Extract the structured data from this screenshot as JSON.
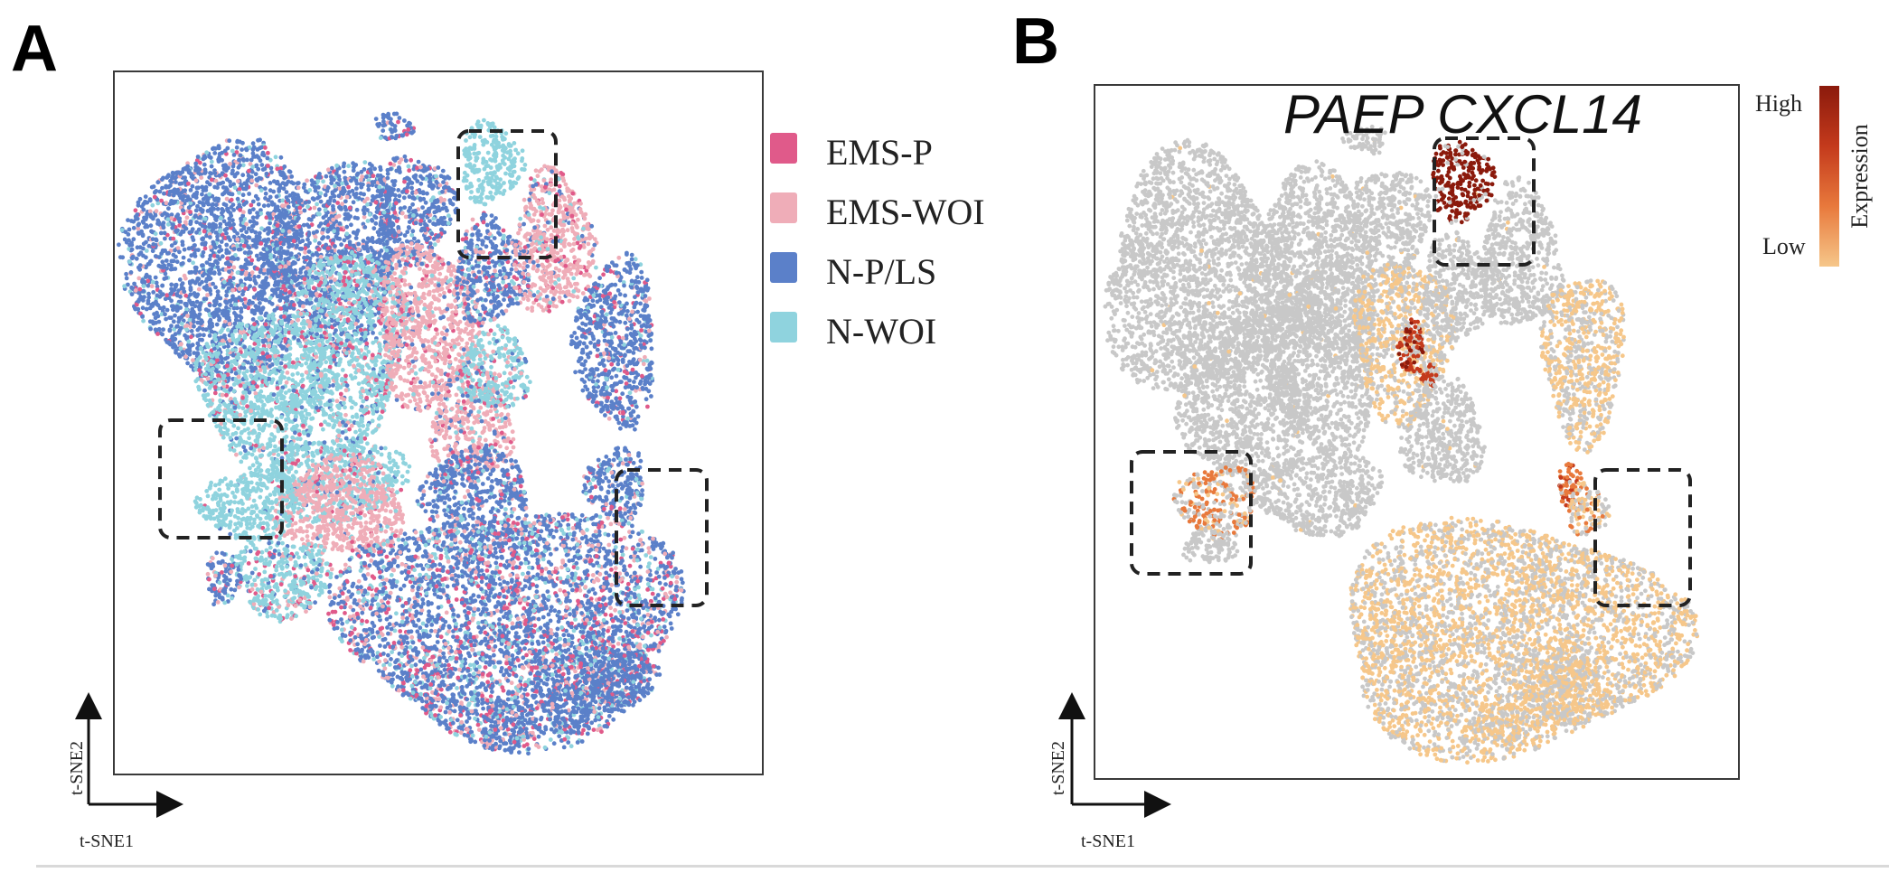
{
  "panels": {
    "a": {
      "letter": "A"
    },
    "b": {
      "letter": "B",
      "title": "PAEP CXCL14"
    }
  },
  "chart_data": [
    {
      "type": "scatter",
      "panel": "A",
      "title": "",
      "xlabel": "t-SNE1",
      "ylabel": "t-SNE2",
      "legend_position": "right",
      "series": [
        {
          "name": "EMS-P",
          "color": "#e05a8a"
        },
        {
          "name": "EMS-WOI",
          "color": "#efadb8"
        },
        {
          "name": "N-P/LS",
          "color": "#5b80c9"
        },
        {
          "name": "N-WOI",
          "color": "#8fd3de"
        }
      ],
      "highlight_boxes": 3
    },
    {
      "type": "scatter",
      "panel": "B",
      "title": "PAEP CXCL14",
      "xlabel": "t-SNE1",
      "ylabel": "t-SNE2",
      "colorbar": {
        "title": "Expression",
        "high_label": "High",
        "low_label": "Low",
        "colors": [
          "#8b1a0c",
          "#c43a1c",
          "#e8793c",
          "#f6c78a"
        ]
      },
      "background_color": "#c8c8c8",
      "highlight_boxes": 3
    }
  ]
}
